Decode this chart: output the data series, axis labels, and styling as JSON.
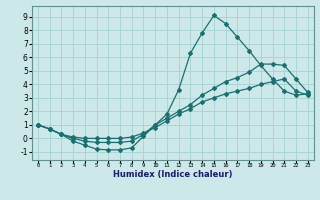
{
  "bg_color": "#cce8e8",
  "grid_color": "#aad4d4",
  "line_color": "#1a7070",
  "xlabel": "Humidex (Indice chaleur)",
  "xlim": [
    -0.5,
    23.5
  ],
  "ylim": [
    -1.6,
    9.8
  ],
  "xticks": [
    0,
    1,
    2,
    3,
    4,
    5,
    6,
    7,
    8,
    9,
    10,
    11,
    12,
    13,
    14,
    15,
    16,
    17,
    18,
    19,
    20,
    21,
    22,
    23
  ],
  "yticks": [
    -1,
    0,
    1,
    2,
    3,
    4,
    5,
    6,
    7,
    8,
    9
  ],
  "curve1_x": [
    0,
    1,
    2,
    3,
    4,
    5,
    6,
    7,
    8,
    9,
    10,
    11,
    12,
    13,
    14,
    15,
    16,
    17,
    18,
    19,
    20,
    21,
    22,
    23
  ],
  "curve1_y": [
    1.0,
    0.7,
    0.3,
    -0.2,
    -0.5,
    -0.8,
    -0.85,
    -0.85,
    -0.7,
    0.15,
    1.0,
    1.8,
    3.6,
    6.3,
    7.8,
    9.1,
    8.5,
    7.5,
    6.5,
    5.4,
    4.4,
    3.5,
    3.2,
    3.3
  ],
  "curve2_x": [
    0,
    1,
    2,
    3,
    4,
    5,
    6,
    7,
    8,
    9,
    10,
    11,
    12,
    13,
    14,
    15,
    16,
    17,
    18,
    19,
    20,
    21,
    22,
    23
  ],
  "curve2_y": [
    1.0,
    0.7,
    0.3,
    0.0,
    -0.2,
    -0.3,
    -0.3,
    -0.3,
    -0.2,
    0.3,
    1.0,
    1.5,
    2.0,
    2.5,
    3.2,
    3.7,
    4.2,
    4.5,
    4.9,
    5.5,
    5.5,
    5.4,
    4.4,
    3.4
  ],
  "curve3_x": [
    0,
    1,
    2,
    3,
    4,
    5,
    6,
    7,
    8,
    9,
    10,
    11,
    12,
    13,
    14,
    15,
    16,
    17,
    18,
    19,
    20,
    21,
    22,
    23
  ],
  "curve3_y": [
    1.0,
    0.7,
    0.3,
    0.1,
    0.0,
    0.0,
    0.0,
    0.0,
    0.1,
    0.4,
    0.8,
    1.3,
    1.8,
    2.2,
    2.7,
    3.0,
    3.3,
    3.5,
    3.7,
    4.0,
    4.2,
    4.4,
    3.5,
    3.2
  ]
}
